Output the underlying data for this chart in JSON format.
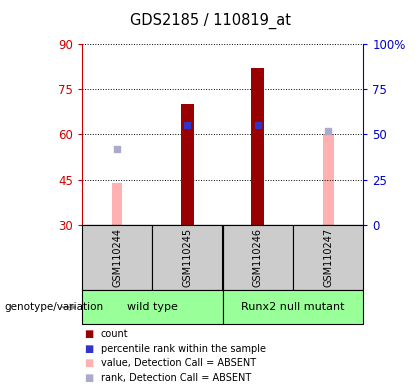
{
  "title": "GDS2185 / 110819_at",
  "samples": [
    "GSM110244",
    "GSM110245",
    "GSM110246",
    "GSM110247"
  ],
  "ylim": [
    30,
    90
  ],
  "yticks": [
    30,
    45,
    60,
    75,
    90
  ],
  "yticks_right_labels": [
    "0",
    "25",
    "50",
    "75",
    "100%"
  ],
  "red_bars": [
    null,
    70,
    82,
    null
  ],
  "red_bar_base": 30,
  "pink_bars": [
    44,
    null,
    null,
    60
  ],
  "pink_bar_base": 30,
  "blue_squares": [
    null,
    63,
    63,
    null
  ],
  "lavender_squares": [
    55,
    null,
    null,
    61
  ],
  "bar_width": 0.18,
  "colors": {
    "red_bar": "#990000",
    "pink_bar": "#ffb0b0",
    "blue_sq": "#3333cc",
    "lavender_sq": "#aaaacc",
    "left_axis": "#cc0000",
    "right_axis": "#0000cc",
    "group_box": "#99ff99",
    "sample_box": "#cccccc",
    "arrow": "#999999",
    "white": "#ffffff"
  },
  "groups_data": [
    {
      "start": 0,
      "end": 1,
      "label": "wild type"
    },
    {
      "start": 2,
      "end": 3,
      "label": "Runx2 null mutant"
    }
  ],
  "legend_items": [
    {
      "color": "#990000",
      "label": "count"
    },
    {
      "color": "#3333cc",
      "label": "percentile rank within the sample"
    },
    {
      "color": "#ffb0b0",
      "label": "value, Detection Call = ABSENT"
    },
    {
      "color": "#aaaacc",
      "label": "rank, Detection Call = ABSENT"
    }
  ],
  "fig_width": 4.2,
  "fig_height": 3.84,
  "dpi": 100
}
